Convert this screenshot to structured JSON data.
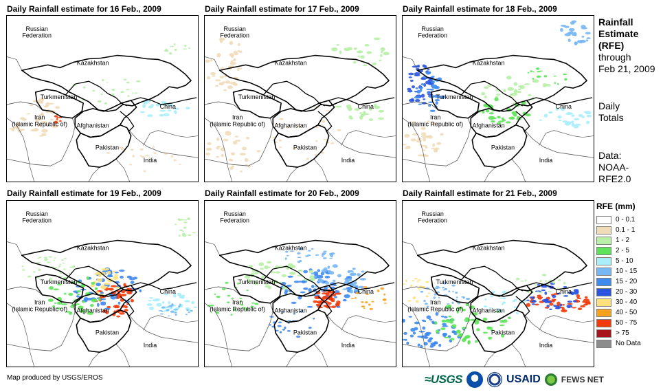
{
  "panels": [
    {
      "title": "Daily Rainfall estimate for 16 Feb., 2009",
      "intensity": 0
    },
    {
      "title": "Daily Rainfall estimate for 17 Feb., 2009",
      "intensity": 1
    },
    {
      "title": "Daily Rainfall estimate for 18 Feb., 2009",
      "intensity": 2
    },
    {
      "title": "Daily Rainfall estimate for 19 Feb., 2009",
      "intensity": 3
    },
    {
      "title": "Daily Rainfall estimate for 20 Feb., 2009",
      "intensity": 4
    },
    {
      "title": "Daily Rainfall estimate for 21 Feb., 2009",
      "intensity": 5
    }
  ],
  "map_labels": {
    "russia": "Russian\nFederation",
    "kazakhstan": "Kazakhstan",
    "turkmenistan": "Turkmenistan",
    "iran": "Iran\n(Islamic Republic of)",
    "afghanistan": "Afghanistan",
    "pakistan": "Pakistan",
    "china": "China",
    "india": "India"
  },
  "side_info": {
    "line1": "Rainfall",
    "line2": "Estimate",
    "line3": "(RFE)",
    "line4": "through",
    "line5": "Feb 21, 2009",
    "totals1": "Daily",
    "totals2": "Totals",
    "data1": "Data:",
    "data2": "NOAA-",
    "data3": "RFE2.0"
  },
  "legend": {
    "title": "RFE (mm)",
    "items": [
      {
        "label": "0 - 0.1",
        "color": "#ffffff"
      },
      {
        "label": "0.1 - 1",
        "color": "#f1dcb9"
      },
      {
        "label": "1 - 2",
        "color": "#b7f0a6"
      },
      {
        "label": "2 - 5",
        "color": "#5ee35a"
      },
      {
        "label": "5 - 10",
        "color": "#a9eef9"
      },
      {
        "label": "10 - 15",
        "color": "#77b7f4"
      },
      {
        "label": "15 - 20",
        "color": "#3f8af0"
      },
      {
        "label": "20 - 30",
        "color": "#2a55e0"
      },
      {
        "label": "30 - 40",
        "color": "#fde17a"
      },
      {
        "label": "40 - 50",
        "color": "#f8a11e"
      },
      {
        "label": "50 - 75",
        "color": "#f33a0a"
      },
      {
        "label": "> 75",
        "color": "#a7141a"
      },
      {
        "label": "No Data",
        "color": "#8c8c8c"
      }
    ]
  },
  "footer": {
    "credit": "Map produced by USGS/EROS"
  },
  "logos": {
    "usgs": "≈USGS",
    "usaid": "USAID",
    "fews": "FEWS NET"
  }
}
